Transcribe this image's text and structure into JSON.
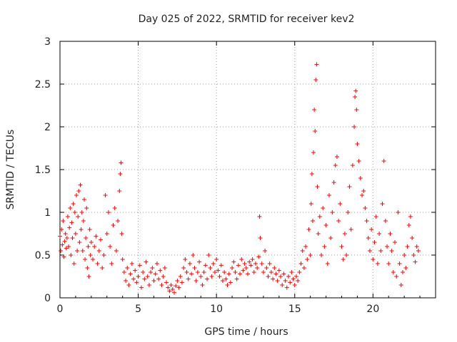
{
  "chart_data": {
    "type": "scatter",
    "title": "Day 025 of 2022, SRMTID for receiver kev2",
    "xlabel": "GPS time / hours",
    "ylabel": "SRMTID / TECUs",
    "xlim": [
      0,
      24
    ],
    "ylim": [
      0,
      3
    ],
    "xticks": [
      0,
      5,
      10,
      15,
      20
    ],
    "yticks": [
      0,
      0.5,
      1,
      1.5,
      2,
      2.5,
      3
    ],
    "xtick_labels": [
      "0",
      "5",
      "10",
      "15",
      "20"
    ],
    "ytick_labels": [
      "0",
      "0.5",
      "1",
      "1.5",
      "2",
      "2.5",
      "3"
    ],
    "grid": true,
    "marker": "+",
    "series": [
      {
        "name": "SRMTID",
        "color": "#ff0000",
        "points": [
          [
            0.0,
            0.72
          ],
          [
            0.05,
            0.55
          ],
          [
            0.1,
            0.8
          ],
          [
            0.15,
            0.62
          ],
          [
            0.2,
            0.9
          ],
          [
            0.25,
            0.48
          ],
          [
            0.3,
            0.66
          ],
          [
            0.35,
            0.75
          ],
          [
            0.4,
            0.58
          ],
          [
            0.45,
            0.7
          ],
          [
            0.5,
            0.95
          ],
          [
            0.55,
            0.6
          ],
          [
            0.6,
            0.82
          ],
          [
            0.65,
            1.05
          ],
          [
            0.7,
            0.5
          ],
          [
            0.75,
            0.88
          ],
          [
            0.8,
            0.7
          ],
          [
            0.85,
            1.1
          ],
          [
            0.9,
            0.4
          ],
          [
            0.95,
            1.0
          ],
          [
            1.0,
            0.75
          ],
          [
            1.05,
            1.2
          ],
          [
            1.1,
            0.55
          ],
          [
            1.15,
            0.95
          ],
          [
            1.2,
            1.25
          ],
          [
            1.25,
            0.65
          ],
          [
            1.3,
            1.32
          ],
          [
            1.35,
            0.8
          ],
          [
            1.4,
            1.0
          ],
          [
            1.45,
            0.55
          ],
          [
            1.5,
            0.9
          ],
          [
            1.55,
            1.15
          ],
          [
            1.6,
            0.45
          ],
          [
            1.65,
            0.7
          ],
          [
            1.7,
            1.05
          ],
          [
            1.75,
            0.35
          ],
          [
            1.8,
            0.6
          ],
          [
            1.85,
            0.25
          ],
          [
            1.9,
            0.8
          ],
          [
            1.95,
            0.5
          ],
          [
            2.0,
            0.65
          ],
          [
            2.1,
            0.45
          ],
          [
            2.2,
            0.6
          ],
          [
            2.3,
            0.72
          ],
          [
            2.4,
            0.4
          ],
          [
            2.5,
            0.55
          ],
          [
            2.6,
            0.68
          ],
          [
            2.7,
            0.35
          ],
          [
            2.8,
            0.5
          ],
          [
            2.9,
            1.2
          ],
          [
            3.0,
            0.75
          ],
          [
            3.1,
            1.0
          ],
          [
            3.2,
            0.6
          ],
          [
            3.3,
            0.4
          ],
          [
            3.4,
            0.85
          ],
          [
            3.5,
            1.05
          ],
          [
            3.6,
            0.55
          ],
          [
            3.7,
            0.9
          ],
          [
            3.8,
            1.25
          ],
          [
            3.85,
            1.45
          ],
          [
            3.9,
            1.58
          ],
          [
            3.95,
            0.75
          ],
          [
            4.0,
            0.45
          ],
          [
            4.1,
            0.3
          ],
          [
            4.2,
            0.2
          ],
          [
            4.3,
            0.35
          ],
          [
            4.4,
            0.15
          ],
          [
            4.5,
            0.28
          ],
          [
            4.6,
            0.4
          ],
          [
            4.7,
            0.22
          ],
          [
            4.8,
            0.32
          ],
          [
            4.9,
            0.18
          ],
          [
            5.0,
            0.25
          ],
          [
            5.1,
            0.38
          ],
          [
            5.2,
            0.12
          ],
          [
            5.3,
            0.3
          ],
          [
            5.4,
            0.22
          ],
          [
            5.5,
            0.42
          ],
          [
            5.6,
            0.25
          ],
          [
            5.7,
            0.15
          ],
          [
            5.8,
            0.3
          ],
          [
            5.9,
            0.35
          ],
          [
            6.0,
            0.2
          ],
          [
            6.1,
            0.28
          ],
          [
            6.2,
            0.4
          ],
          [
            6.3,
            0.22
          ],
          [
            6.4,
            0.32
          ],
          [
            6.5,
            0.15
          ],
          [
            6.6,
            0.25
          ],
          [
            6.7,
            0.35
          ],
          [
            6.8,
            0.18
          ],
          [
            6.9,
            0.12
          ],
          [
            7.0,
            0.08
          ],
          [
            7.1,
            0.15
          ],
          [
            7.2,
            0.1
          ],
          [
            7.3,
            0.06
          ],
          [
            7.4,
            0.14
          ],
          [
            7.5,
            0.2
          ],
          [
            7.6,
            0.12
          ],
          [
            7.7,
            0.25
          ],
          [
            7.8,
            0.18
          ],
          [
            7.9,
            0.35
          ],
          [
            8.0,
            0.45
          ],
          [
            8.1,
            0.3
          ],
          [
            8.2,
            0.22
          ],
          [
            8.3,
            0.4
          ],
          [
            8.4,
            0.28
          ],
          [
            8.5,
            0.5
          ],
          [
            8.6,
            0.35
          ],
          [
            8.7,
            0.2
          ],
          [
            8.8,
            0.3
          ],
          [
            8.9,
            0.42
          ],
          [
            9.0,
            0.25
          ],
          [
            9.1,
            0.15
          ],
          [
            9.2,
            0.3
          ],
          [
            9.3,
            0.38
          ],
          [
            9.4,
            0.22
          ],
          [
            9.5,
            0.5
          ],
          [
            9.6,
            0.35
          ],
          [
            9.7,
            0.25
          ],
          [
            9.8,
            0.4
          ],
          [
            9.9,
            0.3
          ],
          [
            10.0,
            0.45
          ],
          [
            10.1,
            0.32
          ],
          [
            10.2,
            0.25
          ],
          [
            10.3,
            0.38
          ],
          [
            10.4,
            0.2
          ],
          [
            10.5,
            0.3
          ],
          [
            10.6,
            0.22
          ],
          [
            10.7,
            0.15
          ],
          [
            10.8,
            0.28
          ],
          [
            10.9,
            0.18
          ],
          [
            11.0,
            0.35
          ],
          [
            11.1,
            0.42
          ],
          [
            11.2,
            0.3
          ],
          [
            11.3,
            0.22
          ],
          [
            11.4,
            0.38
          ],
          [
            11.5,
            0.28
          ],
          [
            11.6,
            0.45
          ],
          [
            11.7,
            0.32
          ],
          [
            11.8,
            0.4
          ],
          [
            11.9,
            0.35
          ],
          [
            12.0,
            0.28
          ],
          [
            12.1,
            0.42
          ],
          [
            12.2,
            0.38
          ],
          [
            12.3,
            0.45
          ],
          [
            12.4,
            0.3
          ],
          [
            12.5,
            0.4
          ],
          [
            12.6,
            0.35
          ],
          [
            12.7,
            0.48
          ],
          [
            12.75,
            0.95
          ],
          [
            12.8,
            0.7
          ],
          [
            12.9,
            0.4
          ],
          [
            13.0,
            0.3
          ],
          [
            13.1,
            0.55
          ],
          [
            13.2,
            0.35
          ],
          [
            13.3,
            0.25
          ],
          [
            13.4,
            0.4
          ],
          [
            13.5,
            0.3
          ],
          [
            13.6,
            0.22
          ],
          [
            13.7,
            0.35
          ],
          [
            13.8,
            0.28
          ],
          [
            13.9,
            0.2
          ],
          [
            14.0,
            0.32
          ],
          [
            14.1,
            0.25
          ],
          [
            14.2,
            0.15
          ],
          [
            14.3,
            0.28
          ],
          [
            14.4,
            0.2
          ],
          [
            14.5,
            0.12
          ],
          [
            14.6,
            0.25
          ],
          [
            14.7,
            0.18
          ],
          [
            14.8,
            0.3
          ],
          [
            14.9,
            0.22
          ],
          [
            15.0,
            0.15
          ],
          [
            15.1,
            0.25
          ],
          [
            15.2,
            0.2
          ],
          [
            15.3,
            0.3
          ],
          [
            15.4,
            0.4
          ],
          [
            15.5,
            0.55
          ],
          [
            15.6,
            0.35
          ],
          [
            15.7,
            0.6
          ],
          [
            15.8,
            0.45
          ],
          [
            15.9,
            0.8
          ],
          [
            16.0,
            0.5
          ],
          [
            16.05,
            1.1
          ],
          [
            16.1,
            1.45
          ],
          [
            16.15,
            0.9
          ],
          [
            16.2,
            1.7
          ],
          [
            16.25,
            2.2
          ],
          [
            16.3,
            1.95
          ],
          [
            16.35,
            2.55
          ],
          [
            16.4,
            2.73
          ],
          [
            16.45,
            1.3
          ],
          [
            16.5,
            0.75
          ],
          [
            16.6,
            0.95
          ],
          [
            16.7,
            0.5
          ],
          [
            16.8,
            1.05
          ],
          [
            16.9,
            0.6
          ],
          [
            17.0,
            0.85
          ],
          [
            17.1,
            0.4
          ],
          [
            17.2,
            1.2
          ],
          [
            17.3,
            0.7
          ],
          [
            17.4,
            1.0
          ],
          [
            17.5,
            1.35
          ],
          [
            17.6,
            1.55
          ],
          [
            17.7,
            1.65
          ],
          [
            17.8,
            0.9
          ],
          [
            17.9,
            1.1
          ],
          [
            18.0,
            0.6
          ],
          [
            18.1,
            0.45
          ],
          [
            18.2,
            0.75
          ],
          [
            18.3,
            0.5
          ],
          [
            18.4,
            1.0
          ],
          [
            18.5,
            1.3
          ],
          [
            18.6,
            0.8
          ],
          [
            18.7,
            1.55
          ],
          [
            18.8,
            2.0
          ],
          [
            18.85,
            2.35
          ],
          [
            18.9,
            2.42
          ],
          [
            18.95,
            2.2
          ],
          [
            19.0,
            1.8
          ],
          [
            19.1,
            1.6
          ],
          [
            19.2,
            1.4
          ],
          [
            19.3,
            1.2
          ],
          [
            19.4,
            1.25
          ],
          [
            19.5,
            1.05
          ],
          [
            19.6,
            0.9
          ],
          [
            19.7,
            0.7
          ],
          [
            19.8,
            0.55
          ],
          [
            19.9,
            0.8
          ],
          [
            20.0,
            0.45
          ],
          [
            20.1,
            0.65
          ],
          [
            20.2,
            0.95
          ],
          [
            20.3,
            0.4
          ],
          [
            20.4,
            0.75
          ],
          [
            20.5,
            0.55
          ],
          [
            20.6,
            1.1
          ],
          [
            20.7,
            1.6
          ],
          [
            20.8,
            0.9
          ],
          [
            20.9,
            0.6
          ],
          [
            21.0,
            0.4
          ],
          [
            21.1,
            0.75
          ],
          [
            21.2,
            0.55
          ],
          [
            21.3,
            0.3
          ],
          [
            21.4,
            0.65
          ],
          [
            21.5,
            0.25
          ],
          [
            21.6,
            1.0
          ],
          [
            21.7,
            0.4
          ],
          [
            21.8,
            0.15
          ],
          [
            21.9,
            0.3
          ],
          [
            22.0,
            0.5
          ],
          [
            22.1,
            0.35
          ],
          [
            22.2,
            0.6
          ],
          [
            22.3,
            0.85
          ],
          [
            22.4,
            0.95
          ],
          [
            22.5,
            0.7
          ],
          [
            22.6,
            0.5
          ],
          [
            22.7,
            0.42
          ],
          [
            22.8,
            0.6
          ],
          [
            22.9,
            0.55
          ]
        ]
      }
    ]
  }
}
